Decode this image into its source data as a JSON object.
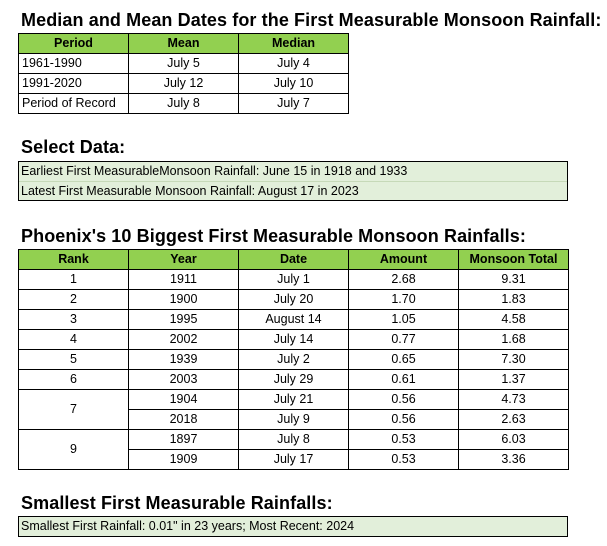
{
  "section1": {
    "title": "Median and Mean Dates for the First Measurable Monsoon Rainfall:",
    "headers": [
      "Period",
      "Mean",
      "Median"
    ],
    "rows": [
      [
        "1961-1990",
        "July 5",
        "July 4"
      ],
      [
        "1991-2020",
        "July 12",
        "July 10"
      ],
      [
        "Period of Record",
        "July 8",
        "July 7"
      ]
    ]
  },
  "section2": {
    "title": "Select Data:",
    "lines": [
      "Earliest First MeasurableMonsoon Rainfall: June 15 in 1918 and 1933",
      "Latest First Measurable Monsoon Rainfall: August 17 in 2023"
    ]
  },
  "section3": {
    "title": "Phoenix's 10 Biggest First Measurable Monsoon Rainfalls:",
    "headers": [
      "Rank",
      "Year",
      "Date",
      "Amount",
      "Monsoon Total"
    ],
    "ranks": [
      "1",
      "2",
      "3",
      "4",
      "5",
      "6",
      "7",
      "9"
    ],
    "rows": [
      [
        "1911",
        "July 1",
        "2.68",
        "9.31"
      ],
      [
        "1900",
        "July 20",
        "1.70",
        "1.83"
      ],
      [
        "1995",
        "August 14",
        "1.05",
        "4.58"
      ],
      [
        "2002",
        "July 14",
        "0.77",
        "1.68"
      ],
      [
        "1939",
        "July 2",
        "0.65",
        "7.30"
      ],
      [
        "2003",
        "July 29",
        "0.61",
        "1.37"
      ],
      [
        "1904",
        "July 21",
        "0.56",
        "4.73"
      ],
      [
        "2018",
        "July 9",
        "0.56",
        "2.63"
      ],
      [
        "1897",
        "July 8",
        "0.53",
        "6.03"
      ],
      [
        "1909",
        "July 17",
        "0.53",
        "3.36"
      ]
    ]
  },
  "section4": {
    "title": "Smallest First Measurable Rainfalls:",
    "line": "Smallest First Rainfall: 0.01\" in 23 years; Most Recent: 2024"
  },
  "colors": {
    "header_green": "#92d050",
    "box_green": "#e2efda"
  }
}
